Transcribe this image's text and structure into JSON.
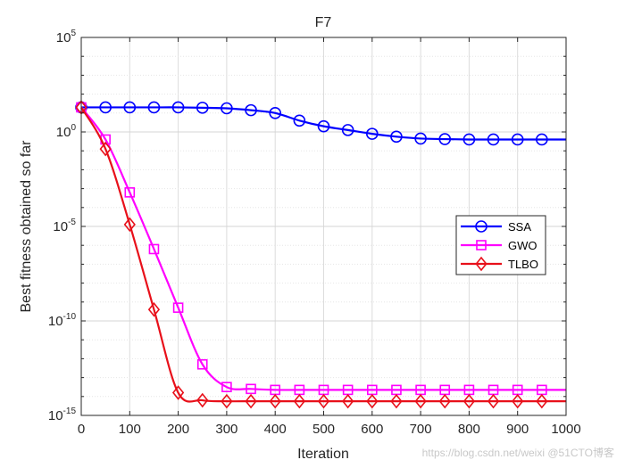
{
  "chart_data": {
    "type": "line",
    "title": "F7",
    "xlabel": "Iteration",
    "ylabel": "Best fitness obtained so far",
    "xlim": [
      0,
      1000
    ],
    "ylim_log10": [
      -15,
      5
    ],
    "yscale": "log",
    "grid": true,
    "x_ticks": [
      0,
      100,
      200,
      300,
      400,
      500,
      600,
      700,
      800,
      900,
      1000
    ],
    "x_tick_labels": [
      "0",
      "100",
      "200",
      "300",
      "400",
      "500",
      "600",
      "700",
      "800",
      "900",
      "1000"
    ],
    "y_ticks": [
      {
        "exp": -15,
        "base": "10",
        "power": "-15"
      },
      {
        "exp": -10,
        "base": "10",
        "power": "-10"
      },
      {
        "exp": -5,
        "base": "10",
        "power": "-5"
      },
      {
        "exp": 0,
        "base": "10",
        "power": "0"
      },
      {
        "exp": 5,
        "base": "10",
        "power": "5"
      }
    ],
    "legend_position": "right",
    "series": [
      {
        "name": "SSA",
        "color": "#0000ff",
        "marker": "circle",
        "x": [
          0,
          50,
          100,
          150,
          200,
          250,
          300,
          350,
          400,
          450,
          500,
          550,
          600,
          650,
          700,
          750,
          800,
          850,
          900,
          950,
          1000
        ],
        "log10_y": [
          1.3,
          1.3,
          1.3,
          1.3,
          1.3,
          1.28,
          1.25,
          1.15,
          1.0,
          0.6,
          0.3,
          0.1,
          -0.1,
          -0.25,
          -0.35,
          -0.38,
          -0.4,
          -0.4,
          -0.4,
          -0.4,
          -0.4
        ]
      },
      {
        "name": "GWO",
        "color": "#ff00ff",
        "marker": "square",
        "x": [
          0,
          50,
          100,
          150,
          200,
          250,
          300,
          350,
          400,
          450,
          500,
          550,
          600,
          650,
          700,
          750,
          800,
          850,
          900,
          950,
          1000
        ],
        "log10_y": [
          1.3,
          -0.4,
          -3.2,
          -6.2,
          -9.3,
          -12.3,
          -13.5,
          -13.6,
          -13.65,
          -13.65,
          -13.65,
          -13.65,
          -13.65,
          -13.65,
          -13.65,
          -13.65,
          -13.65,
          -13.65,
          -13.65,
          -13.65,
          -13.65
        ]
      },
      {
        "name": "TLBO",
        "color": "#e8101a",
        "marker": "diamond",
        "x": [
          0,
          50,
          100,
          150,
          200,
          250,
          300,
          350,
          400,
          450,
          500,
          550,
          600,
          650,
          700,
          750,
          800,
          850,
          900,
          950,
          1000
        ],
        "log10_y": [
          1.3,
          -0.9,
          -4.9,
          -9.4,
          -13.8,
          -14.2,
          -14.25,
          -14.25,
          -14.25,
          -14.25,
          -14.25,
          -14.25,
          -14.25,
          -14.25,
          -14.25,
          -14.25,
          -14.25,
          -14.25,
          -14.25,
          -14.25,
          -14.25
        ]
      }
    ]
  },
  "watermark": "https://blog.csdn.net/weixi @51CTO博客"
}
